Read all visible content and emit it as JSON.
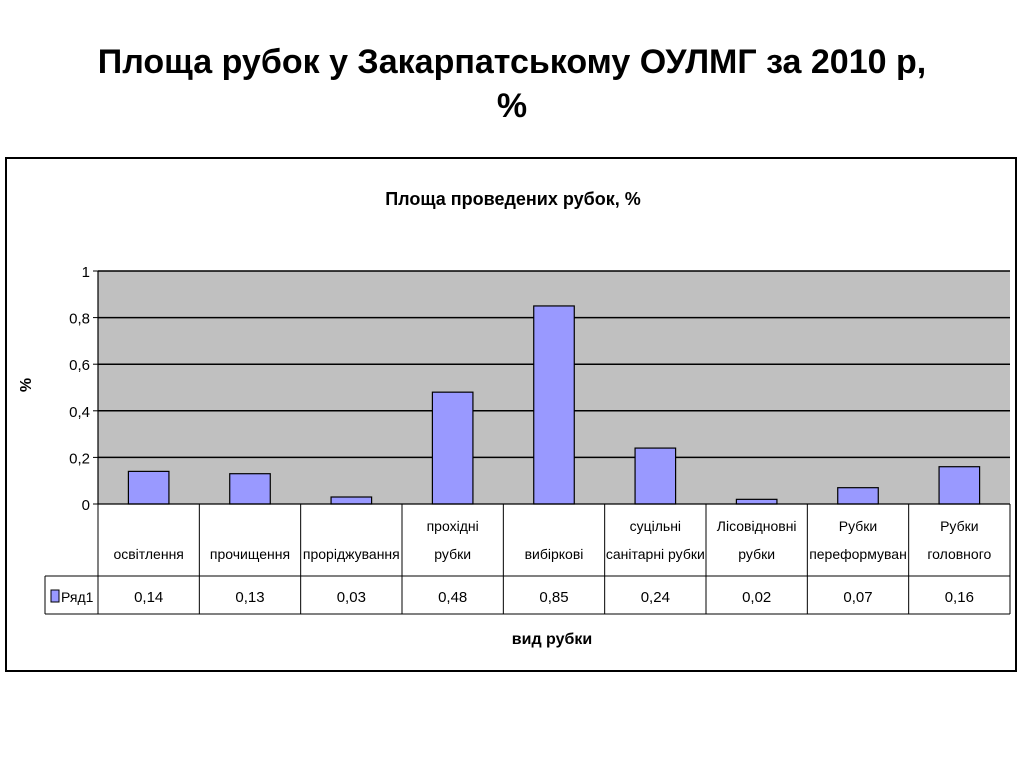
{
  "slide": {
    "title_line1": "Площа  рубок у Закарпатському ОУЛМГ за 2010 р,",
    "title_line2": "%"
  },
  "chart_data": {
    "type": "bar",
    "title": "Площа проведених рубок, %",
    "xlabel": "вид рубки",
    "ylabel": "%",
    "ylim": [
      0,
      1
    ],
    "yticks": [
      "0",
      "0,2",
      "0,4",
      "0,6",
      "0,8",
      "1"
    ],
    "grid": true,
    "categories": [
      [
        "освітлення"
      ],
      [
        "прочищення"
      ],
      [
        "проріджування"
      ],
      [
        "прохідні",
        "рубки"
      ],
      [
        "вибіркові"
      ],
      [
        "суцільні",
        "санітарні рубки"
      ],
      [
        "Лісовідновні",
        "рубки"
      ],
      [
        "Рубки",
        "переформуван"
      ],
      [
        "Рубки",
        "головного"
      ]
    ],
    "series": [
      {
        "name": "Ряд1",
        "values": [
          0.14,
          0.13,
          0.03,
          0.48,
          0.85,
          0.24,
          0.02,
          0.07,
          0.16
        ],
        "labels": [
          "0,14",
          "0,13",
          "0,03",
          "0,48",
          "0,85",
          "0,24",
          "0,02",
          "0,07",
          "0,16"
        ],
        "color": "#9999ff"
      }
    ],
    "colors": {
      "plot_bg": "#c0c0c0",
      "bar_fill": "#9999ff",
      "bar_stroke": "#000000"
    },
    "legend": "data-table"
  }
}
